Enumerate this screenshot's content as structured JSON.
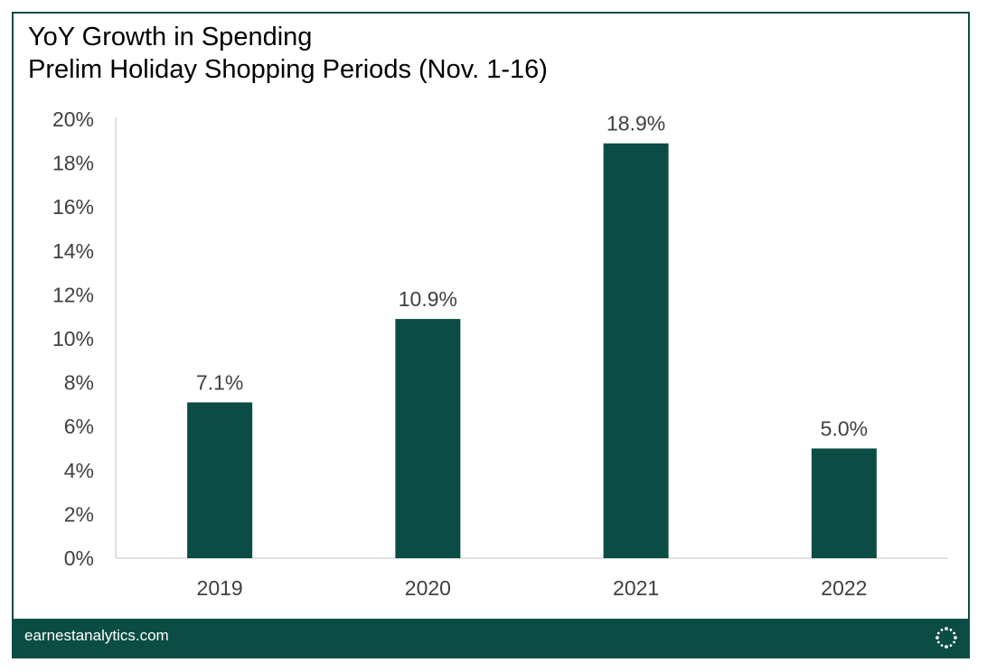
{
  "title_line1": "YoY Growth in Spending",
  "title_line2": "Prelim Holiday Shopping Periods (Nov. 1-16)",
  "footer": {
    "site": "earnestanalytics.com",
    "logo_icon": "earnest-dots-logo-icon"
  },
  "colors": {
    "bar": "#0b4d44",
    "footer_bg": "#0b4d44",
    "axis": "#d9d9d9",
    "text": "#404040"
  },
  "chart_data": {
    "type": "bar",
    "title": "YoY Growth in Spending\nPrelim Holiday Shopping Periods (Nov. 1-16)",
    "categories": [
      "2019",
      "2020",
      "2021",
      "2022"
    ],
    "values": [
      7.1,
      10.9,
      18.9,
      5.0
    ],
    "data_labels": [
      "7.1%",
      "10.9%",
      "18.9%",
      "5.0%"
    ],
    "ylim": [
      0,
      20
    ],
    "yticks": [
      0,
      2,
      4,
      6,
      8,
      10,
      12,
      14,
      16,
      18,
      20
    ],
    "ytick_labels": [
      "0%",
      "2%",
      "4%",
      "6%",
      "8%",
      "10%",
      "12%",
      "14%",
      "16%",
      "18%",
      "20%"
    ],
    "xlabel": "",
    "ylabel": "",
    "grid": false,
    "legend": "none"
  }
}
